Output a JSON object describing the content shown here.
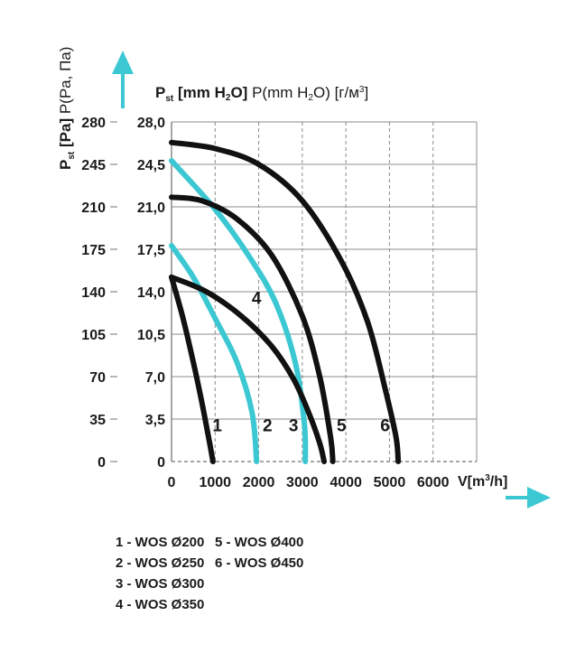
{
  "chart_data": {
    "type": "line",
    "title": "",
    "y_title": {
      "bold_main": "P",
      "bold_sub": "st",
      "bold_unit": "[Pa]",
      "light": "P(Pa, Па)"
    },
    "header_title": {
      "bold_main": "P",
      "bold_sub": "st",
      "bold_unit_pre": "[mm H",
      "bold_unit_sub": "2",
      "bold_unit_post": "O]",
      "light_pre": "P(mm H",
      "light_sub": "2",
      "light_mid": "O) [г/м",
      "light_sup": "3",
      "light_post": "]"
    },
    "x_title": {
      "pre": "V[m",
      "sup": "3",
      "post": "/h]"
    },
    "xlim": [
      0,
      7000
    ],
    "ylim": [
      0,
      280
    ],
    "x_ticks": [
      "0",
      "1000",
      "2000",
      "3000",
      "4000",
      "5000",
      "6000"
    ],
    "x_tick_values": [
      0,
      1000,
      2000,
      3000,
      4000,
      5000,
      6000
    ],
    "y_ticks_pa": [
      "0",
      "35",
      "70",
      "105",
      "140",
      "175",
      "210",
      "245",
      "280"
    ],
    "y_ticks_mm": [
      "0",
      "3,5",
      "7,0",
      "10,5",
      "14,0",
      "17,5",
      "21,0",
      "24,5",
      "28,0"
    ],
    "y_tick_values": [
      0,
      35,
      70,
      105,
      140,
      175,
      210,
      245,
      280
    ],
    "series": [
      {
        "name": "1",
        "color": "#111111",
        "points": [
          [
            0,
            152
          ],
          [
            250,
            120
          ],
          [
            500,
            82
          ],
          [
            700,
            48
          ],
          [
            850,
            20
          ],
          [
            950,
            0
          ]
        ]
      },
      {
        "name": "2",
        "color": "#3cc8d2",
        "points": [
          [
            0,
            178
          ],
          [
            500,
            152
          ],
          [
            1000,
            118
          ],
          [
            1500,
            82
          ],
          [
            1850,
            40
          ],
          [
            1950,
            0
          ]
        ]
      },
      {
        "name": "3",
        "color": "#3cc8d2",
        "points": [
          [
            0,
            248
          ],
          [
            1000,
            208
          ],
          [
            1800,
            168
          ],
          [
            2400,
            130
          ],
          [
            2850,
            80
          ],
          [
            3050,
            30
          ],
          [
            3070,
            0
          ]
        ]
      },
      {
        "name": "4",
        "color": "#111111",
        "points": [
          [
            0,
            152
          ],
          [
            800,
            140
          ],
          [
            1600,
            120
          ],
          [
            2300,
            95
          ],
          [
            2800,
            68
          ],
          [
            3150,
            40
          ],
          [
            3400,
            15
          ],
          [
            3500,
            0
          ]
        ]
      },
      {
        "name": "5",
        "color": "#111111",
        "points": [
          [
            0,
            218
          ],
          [
            700,
            215
          ],
          [
            1500,
            200
          ],
          [
            2300,
            170
          ],
          [
            3000,
            120
          ],
          [
            3400,
            70
          ],
          [
            3650,
            20
          ],
          [
            3700,
            0
          ]
        ]
      },
      {
        "name": "6",
        "color": "#111111",
        "points": [
          [
            0,
            263
          ],
          [
            1000,
            258
          ],
          [
            2000,
            245
          ],
          [
            3000,
            215
          ],
          [
            3900,
            165
          ],
          [
            4500,
            115
          ],
          [
            4900,
            60
          ],
          [
            5150,
            20
          ],
          [
            5200,
            0
          ]
        ]
      }
    ],
    "curve_labels": [
      {
        "text": "1",
        "x": 1050,
        "y": 30
      },
      {
        "text": "2",
        "x": 2200,
        "y": 30
      },
      {
        "text": "3",
        "x": 2800,
        "y": 30
      },
      {
        "text": "4",
        "x": 1950,
        "y": 135
      },
      {
        "text": "5",
        "x": 3900,
        "y": 30
      },
      {
        "text": "6",
        "x": 4900,
        "y": 30
      }
    ],
    "legend": [
      "1 - WOS Ø200",
      "2 - WOS Ø250",
      "3 - WOS Ø300",
      "4 - WOS Ø350",
      "5 - WOS Ø400",
      "6 - WOS Ø450"
    ],
    "colors": {
      "axis_arrow": "#3cc8d2",
      "grid": "#8c8c8c",
      "frame": "#888888"
    }
  }
}
